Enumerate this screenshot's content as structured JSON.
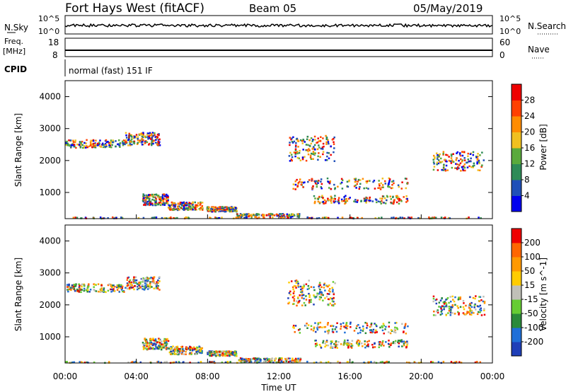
{
  "header": {
    "title": "Fort Hays West (fitACF)",
    "beam": "Beam 05",
    "date": "05/May/2019"
  },
  "status_panels": {
    "nsky_label": "N.Sky",
    "nsearch_label": "N.Search",
    "noise_ticks": [
      "10^5",
      "10^0"
    ],
    "noise_right_ticks": [
      "10^5",
      "10^0"
    ],
    "freq_label_line1": "Freq.",
    "freq_label_line2": "[MHz]",
    "freq_ticks": [
      "18",
      "8"
    ],
    "nave_label": "Nave",
    "nave_ticks": [
      "60",
      "0"
    ],
    "cpid_label": "CPID",
    "cpid_text": "normal (fast) 151 IF"
  },
  "colors": {
    "power_scale": [
      "#0000ee",
      "#1f4fb8",
      "#2e8b57",
      "#5aaa3c",
      "#f0c020",
      "#ff8c00",
      "#ff4000",
      "#ee0000"
    ],
    "velocity_scale": [
      "#1f3fb8",
      "#1f6fd8",
      "#2a8a3a",
      "#66cc33",
      "#c0c0b8",
      "#ffcc00",
      "#ff9900",
      "#ff6600",
      "#ee0000"
    ]
  },
  "chart_data": [
    {
      "type": "heatmap",
      "name": "power",
      "ylabel": "Slant Range [km]",
      "y_ticks": [
        "4000",
        "3000",
        "2000",
        "1000"
      ],
      "y_tick_values": [
        4000,
        3000,
        2000,
        1000
      ],
      "ylim": [
        180,
        4500
      ],
      "x_ticks": [
        "00:00",
        "04:00",
        "08:00",
        "12:00",
        "16:00",
        "20:00",
        "00:00"
      ],
      "xlim_hours": [
        0,
        24
      ],
      "colorbar_label": "Power [dB]",
      "colorbar_ticks": [
        "28",
        "24",
        "20",
        "16",
        "12",
        "8",
        "4"
      ],
      "colorbar_values": [
        28,
        24,
        20,
        16,
        12,
        8,
        4
      ]
    },
    {
      "type": "heatmap",
      "name": "velocity",
      "ylabel": "Slant Range [km]",
      "y_ticks": [
        "4000",
        "3000",
        "2000",
        "1000"
      ],
      "y_tick_values": [
        4000,
        3000,
        2000,
        1000
      ],
      "ylim": [
        180,
        4500
      ],
      "x_ticks": [
        "00:00",
        "04:00",
        "08:00",
        "12:00",
        "16:00",
        "20:00",
        "00:00"
      ],
      "xlim_hours": [
        0,
        24
      ],
      "xlabel": "Time UT",
      "colorbar_label": "Velocity [m s^-1]",
      "colorbar_ticks": [
        "200",
        "100",
        "50",
        "15",
        "-15",
        "-50",
        "-100",
        "-200"
      ],
      "colorbar_values": [
        200,
        100,
        50,
        15,
        -15,
        -50,
        -100,
        -200
      ]
    }
  ]
}
